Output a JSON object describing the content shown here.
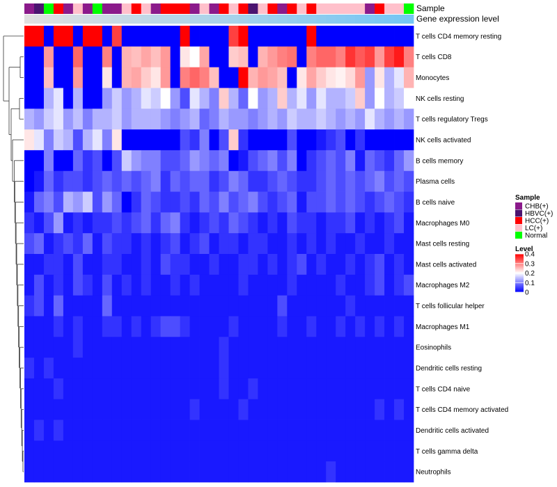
{
  "chart_data": {
    "type": "heatmap",
    "title": "",
    "annotation_labels": {
      "sample": "Sample",
      "expression": "Gene expression level"
    },
    "legend_sample": {
      "title": "Sample",
      "items": [
        {
          "label": "CHB(+)",
          "color": "#8b1a8b"
        },
        {
          "label": "HBVC(+)",
          "color": "#4b1470"
        },
        {
          "label": "HCC(+)",
          "color": "#ff0000"
        },
        {
          "label": "LC(+)",
          "color": "#ffc0cb"
        },
        {
          "label": "Normal",
          "color": "#00ff00"
        }
      ]
    },
    "legend_level": {
      "title": "Level",
      "ticks": [
        "0.4",
        "0.3",
        "0.2",
        "0.1",
        "0"
      ],
      "tick_values": [
        0.4,
        0.3,
        0.2,
        0.1,
        0
      ],
      "range": [
        0,
        0.4
      ],
      "colors": {
        "low": "#0000ff",
        "mid": "#ffffff",
        "high": "#ff0000"
      }
    },
    "samples": [
      "CHB(+)",
      "HBVC(+)",
      "Normal",
      "HCC(+)",
      "CHB(+)",
      "LC(+)",
      "CHB(+)",
      "Normal",
      "CHB(+)",
      "CHB(+)",
      "LC(+)",
      "HCC(+)",
      "LC(+)",
      "CHB(+)",
      "HCC(+)",
      "HCC(+)",
      "HCC(+)",
      "CHB(+)",
      "LC(+)",
      "CHB(+)",
      "HCC(+)",
      "LC(+)",
      "HCC(+)",
      "HBVC(+)",
      "LC(+)",
      "HCC(+)",
      "CHB(+)",
      "HCC(+)",
      "LC(+)",
      "HCC(+)",
      "LC(+)",
      "LC(+)",
      "LC(+)",
      "LC(+)",
      "LC(+)",
      "CHB(+)",
      "HCC(+)",
      "LC(+)",
      "LC(+)",
      "Normal"
    ],
    "expression_gradient": [
      "#e0e0e0",
      "#74c6f4"
    ],
    "rows": [
      "T cells CD4 memory resting",
      "T cells CD8",
      "Monocytes",
      "NK cells resting",
      "T cells regulatory  Tregs",
      "NK cells activated",
      "B cells memory",
      "Plasma cells",
      "B cells naive",
      "Macrophages M0",
      "Mast cells resting",
      "Mast cells activated",
      "Macrophages M2",
      "T cells follicular helper",
      "Macrophages M1",
      "Eosinophils",
      "Dendritic cells resting",
      "T cells CD4 naive",
      "T cells CD4 memory activated",
      "Dendritic cells activated",
      "T cells gamma delta",
      "Neutrophils"
    ],
    "values": [
      [
        0.4,
        0.4,
        0,
        0.4,
        0.4,
        0,
        0.4,
        0.4,
        0,
        0.35,
        0,
        0,
        0,
        0,
        0,
        0,
        0.4,
        0,
        0,
        0,
        0,
        0.35,
        0.4,
        0,
        0,
        0,
        0,
        0,
        0,
        0.4,
        0,
        0,
        0,
        0,
        0,
        0,
        0,
        0,
        0,
        0
      ],
      [
        0,
        0,
        0.28,
        0,
        0,
        0.32,
        0,
        0,
        0.3,
        0,
        0.26,
        0.25,
        0.27,
        0.25,
        0.28,
        0,
        0.22,
        0.2,
        0.27,
        0,
        0,
        0.24,
        0.25,
        0,
        0.26,
        0.28,
        0.3,
        0.31,
        0,
        0.3,
        0.32,
        0.32,
        0.3,
        0.36,
        0.33,
        0.35,
        0.28,
        0.35,
        0.38,
        0.3
      ],
      [
        0,
        0,
        0.25,
        0,
        0,
        0.28,
        0,
        0,
        0.22,
        0,
        0.26,
        0.27,
        0.24,
        0.22,
        0.28,
        0,
        0.3,
        0.32,
        0.3,
        0.25,
        0,
        0,
        0.4,
        0.26,
        0.28,
        0.27,
        0.25,
        0,
        0.22,
        0.27,
        0.24,
        0.22,
        0.21,
        0.23,
        0.28,
        0.12,
        0.22,
        0.14,
        0.18,
        0.26
      ],
      [
        0,
        0,
        0.14,
        0.18,
        0,
        0.14,
        0,
        0,
        0.12,
        0.16,
        0.12,
        0.14,
        0.18,
        0.16,
        0.2,
        0.12,
        0.06,
        0.18,
        0.14,
        0.1,
        0.24,
        0.14,
        0.08,
        0.2,
        0.12,
        0.14,
        0.24,
        0.14,
        0.18,
        0.12,
        0.18,
        0.14,
        0.14,
        0.16,
        0.24,
        0.12,
        0.2,
        0.14,
        0.16,
        0.2
      ],
      [
        0.14,
        0.12,
        0.16,
        0.18,
        0.12,
        0.15,
        0.1,
        0.14,
        0.14,
        0.16,
        0.12,
        0.14,
        0.14,
        0.14,
        0.12,
        0.1,
        0.12,
        0.14,
        0.08,
        0.1,
        0.14,
        0.12,
        0.12,
        0.1,
        0.12,
        0.14,
        0.12,
        0.16,
        0.14,
        0.14,
        0.16,
        0.14,
        0.12,
        0.14,
        0.12,
        0.18,
        0.14,
        0.12,
        0.14,
        0.12
      ],
      [
        0.22,
        0.18,
        0.1,
        0.16,
        0.14,
        0.06,
        0.14,
        0.18,
        0.1,
        0.22,
        0,
        0,
        0,
        0,
        0,
        0,
        0.06,
        0.04,
        0.1,
        0,
        0.06,
        0.24,
        0.04,
        0,
        0,
        0,
        0,
        0.06,
        0,
        0,
        0.02,
        0.04,
        0.06,
        0,
        0.04,
        0,
        0,
        0,
        0,
        0
      ],
      [
        0,
        0,
        0.1,
        0,
        0,
        0.08,
        0.04,
        0.06,
        0,
        0.06,
        0.16,
        0.12,
        0.1,
        0.1,
        0.06,
        0.06,
        0.08,
        0.12,
        0.1,
        0.08,
        0.1,
        0,
        0.02,
        0.06,
        0.08,
        0.1,
        0.06,
        0.1,
        0,
        0.04,
        0.06,
        0.08,
        0.06,
        0.1,
        0.02,
        0.08,
        0.06,
        0.04,
        0.08,
        0.12
      ],
      [
        0,
        0.02,
        0.08,
        0.04,
        0.06,
        0.06,
        0.04,
        0.06,
        0.08,
        0.06,
        0.08,
        0.06,
        0.08,
        0.1,
        0.04,
        0.08,
        0.06,
        0.08,
        0.08,
        0.04,
        0.06,
        0.1,
        0.08,
        0.04,
        0.04,
        0.06,
        0.08,
        0.06,
        0.04,
        0.04,
        0.06,
        0.08,
        0.06,
        0.08,
        0.06,
        0.08,
        0.1,
        0.06,
        0.08,
        0.06
      ],
      [
        0.02,
        0.08,
        0.1,
        0.06,
        0.14,
        0.12,
        0.16,
        0.06,
        0.12,
        0.08,
        0,
        0.04,
        0.08,
        0.06,
        0.04,
        0.04,
        0.06,
        0.04,
        0.08,
        0.06,
        0.1,
        0.06,
        0.08,
        0.1,
        0.06,
        0.04,
        0.06,
        0.08,
        0.02,
        0.06,
        0.06,
        0.08,
        0.06,
        0.08,
        0.06,
        0.04,
        0.06,
        0.08,
        0.06,
        0.04
      ],
      [
        0.04,
        0.02,
        0.06,
        0.12,
        0.02,
        0.04,
        0.02,
        0.04,
        0.04,
        0.06,
        0.04,
        0.06,
        0.08,
        0.04,
        0.08,
        0.1,
        0.04,
        0.02,
        0.04,
        0.06,
        0.04,
        0.08,
        0.06,
        0.04,
        0.02,
        0.04,
        0.02,
        0.06,
        0.04,
        0.04,
        0.02,
        0.04,
        0.04,
        0.06,
        0.02,
        0.04,
        0.02,
        0.04,
        0.06,
        0.02
      ],
      [
        0.06,
        0.08,
        0.02,
        0.04,
        0.06,
        0.04,
        0.08,
        0.02,
        0.06,
        0.04,
        0.04,
        0.02,
        0.04,
        0.02,
        0.04,
        0.06,
        0.02,
        0.04,
        0.06,
        0.02,
        0.04,
        0.04,
        0.02,
        0.04,
        0.04,
        0.02,
        0.02,
        0.04,
        0.02,
        0.04,
        0.02,
        0.04,
        0.02,
        0.02,
        0.04,
        0.02,
        0.02,
        0.04,
        0.02,
        0.02
      ],
      [
        0.02,
        0.02,
        0.04,
        0.04,
        0.02,
        0.06,
        0.02,
        0.02,
        0.04,
        0.04,
        0.02,
        0.02,
        0.04,
        0.02,
        0.06,
        0.04,
        0.04,
        0.02,
        0.02,
        0.04,
        0.02,
        0.02,
        0.04,
        0.04,
        0.02,
        0.04,
        0.02,
        0.04,
        0.06,
        0.02,
        0.04,
        0.02,
        0.02,
        0.04,
        0.02,
        0.04,
        0.06,
        0.02,
        0.04,
        0.02
      ],
      [
        0.02,
        0.06,
        0.02,
        0.04,
        0.02,
        0.06,
        0.04,
        0.02,
        0.06,
        0.02,
        0.04,
        0.02,
        0.04,
        0.02,
        0.02,
        0.04,
        0.02,
        0.04,
        0.02,
        0.02,
        0.02,
        0.02,
        0.04,
        0.02,
        0.02,
        0.02,
        0.02,
        0.04,
        0.02,
        0.02,
        0.02,
        0.02,
        0.04,
        0.02,
        0.02,
        0.04,
        0.06,
        0.02,
        0.04,
        0.06
      ],
      [
        0.04,
        0.06,
        0.02,
        0.08,
        0.02,
        0.02,
        0.02,
        0.02,
        0.08,
        0.02,
        0.02,
        0.02,
        0.02,
        0.02,
        0.02,
        0.02,
        0.02,
        0.02,
        0.02,
        0.02,
        0.02,
        0.02,
        0.02,
        0.02,
        0.02,
        0.02,
        0.06,
        0.02,
        0.02,
        0.02,
        0.02,
        0.02,
        0.02,
        0.04,
        0.02,
        0.02,
        0.02,
        0.02,
        0.02,
        0.02
      ],
      [
        0.02,
        0.02,
        0.02,
        0.04,
        0.02,
        0.04,
        0.02,
        0.02,
        0.04,
        0.04,
        0.02,
        0.04,
        0.02,
        0.04,
        0.06,
        0.06,
        0.04,
        0.02,
        0.02,
        0.02,
        0.02,
        0.04,
        0.02,
        0.02,
        0.02,
        0.02,
        0.04,
        0.02,
        0.02,
        0.04,
        0.02,
        0.02,
        0.04,
        0.02,
        0.04,
        0.02,
        0.04,
        0.02,
        0.04,
        0.02
      ],
      [
        0.02,
        0.02,
        0.02,
        0.02,
        0.02,
        0.04,
        0.02,
        0.02,
        0.02,
        0.02,
        0.02,
        0.02,
        0.02,
        0.02,
        0.02,
        0.02,
        0.02,
        0.02,
        0.02,
        0.02,
        0.04,
        0.02,
        0.02,
        0.02,
        0.02,
        0.02,
        0.02,
        0.02,
        0.02,
        0.02,
        0.02,
        0.02,
        0.02,
        0.02,
        0.02,
        0.02,
        0.02,
        0.02,
        0.02,
        0.02
      ],
      [
        0.04,
        0.02,
        0.04,
        0.02,
        0.02,
        0.02,
        0.02,
        0.02,
        0.02,
        0.02,
        0.02,
        0.02,
        0.02,
        0.02,
        0.02,
        0.02,
        0.02,
        0.02,
        0.02,
        0.02,
        0.04,
        0.02,
        0.02,
        0.02,
        0.02,
        0.02,
        0.02,
        0.02,
        0.02,
        0.02,
        0.02,
        0.02,
        0.02,
        0.02,
        0.02,
        0.02,
        0.02,
        0.02,
        0.02,
        0.02
      ],
      [
        0.02,
        0.02,
        0.02,
        0.04,
        0.02,
        0.02,
        0.02,
        0.02,
        0.02,
        0.02,
        0.02,
        0.02,
        0.02,
        0.02,
        0.02,
        0.02,
        0.02,
        0.02,
        0.02,
        0.02,
        0.04,
        0.02,
        0.02,
        0.04,
        0.02,
        0.02,
        0.02,
        0.02,
        0.02,
        0.02,
        0.02,
        0.02,
        0.02,
        0.02,
        0.02,
        0.02,
        0.02,
        0.02,
        0.02,
        0.02
      ],
      [
        0.02,
        0.02,
        0.02,
        0.02,
        0.02,
        0.02,
        0.02,
        0.02,
        0.02,
        0.02,
        0.02,
        0.02,
        0.02,
        0.02,
        0.02,
        0.02,
        0.02,
        0.04,
        0.02,
        0.02,
        0.02,
        0.02,
        0.04,
        0.02,
        0.02,
        0.02,
        0.02,
        0.02,
        0.02,
        0.02,
        0.02,
        0.02,
        0.02,
        0.02,
        0.02,
        0.02,
        0.04,
        0.02,
        0.04,
        0.02
      ],
      [
        0.02,
        0.04,
        0.02,
        0.04,
        0.02,
        0.02,
        0.02,
        0.02,
        0.02,
        0.02,
        0.02,
        0.02,
        0.02,
        0.02,
        0.02,
        0.02,
        0.02,
        0.02,
        0.02,
        0.02,
        0.02,
        0.02,
        0.02,
        0.02,
        0.02,
        0.02,
        0.02,
        0.02,
        0.02,
        0.02,
        0.02,
        0.02,
        0.02,
        0.02,
        0.02,
        0.02,
        0.02,
        0.02,
        0.02,
        0.02
      ],
      [
        0.02,
        0.02,
        0.02,
        0.02,
        0.02,
        0.02,
        0.02,
        0.02,
        0.02,
        0.02,
        0.02,
        0.02,
        0.02,
        0.02,
        0.02,
        0.02,
        0.02,
        0.02,
        0.02,
        0.02,
        0.02,
        0.02,
        0.02,
        0.02,
        0.02,
        0.02,
        0.02,
        0.02,
        0.02,
        0.02,
        0.02,
        0.02,
        0.02,
        0.02,
        0.02,
        0.02,
        0.02,
        0.02,
        0.02,
        0.02
      ],
      [
        0.02,
        0.02,
        0.02,
        0.02,
        0.02,
        0.02,
        0.02,
        0.02,
        0.02,
        0.02,
        0.02,
        0.02,
        0.02,
        0.02,
        0.02,
        0.02,
        0.02,
        0.02,
        0.02,
        0.02,
        0.02,
        0.02,
        0.02,
        0.02,
        0.02,
        0.02,
        0.02,
        0.02,
        0.02,
        0.02,
        0.02,
        0.04,
        0.02,
        0.02,
        0.02,
        0.02,
        0.02,
        0.02,
        0.02,
        0.02
      ]
    ]
  }
}
